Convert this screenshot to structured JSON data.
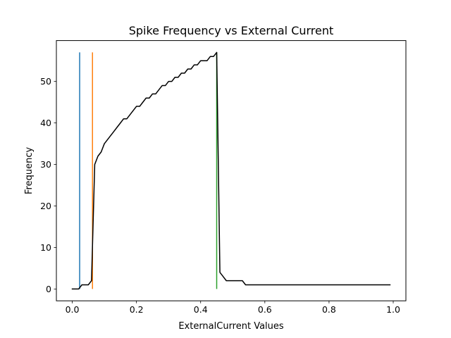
{
  "chart_data": {
    "type": "line",
    "title": "Spike Frequency vs External Current",
    "xlabel": "ExternalCurrent Values",
    "ylabel": "Frequency",
    "xlim": [
      -0.0495,
      1.0395
    ],
    "ylim": [
      -2.85,
      59.85
    ],
    "grid": false,
    "legend": "none",
    "x_ticks": [
      {
        "value": 0.0,
        "label": "0.0"
      },
      {
        "value": 0.2,
        "label": "0.2"
      },
      {
        "value": 0.4,
        "label": "0.4"
      },
      {
        "value": 0.6,
        "label": "0.6"
      },
      {
        "value": 0.8,
        "label": "0.8"
      },
      {
        "value": 1.0,
        "label": "1.0"
      }
    ],
    "y_ticks": [
      {
        "value": 0,
        "label": "0"
      },
      {
        "value": 10,
        "label": "10"
      },
      {
        "value": 20,
        "label": "20"
      },
      {
        "value": 30,
        "label": "30"
      },
      {
        "value": 40,
        "label": "40"
      },
      {
        "value": 50,
        "label": "50"
      }
    ],
    "series": [
      {
        "color": "#000000",
        "x": [
          0.0,
          0.01,
          0.02,
          0.03,
          0.04,
          0.05,
          0.06,
          0.07,
          0.08,
          0.09,
          0.1,
          0.11,
          0.12,
          0.13,
          0.14,
          0.15,
          0.16,
          0.17,
          0.18,
          0.19,
          0.2,
          0.21,
          0.22,
          0.23,
          0.24,
          0.25,
          0.26,
          0.27,
          0.28,
          0.29,
          0.3,
          0.31,
          0.32,
          0.33,
          0.34,
          0.35,
          0.36,
          0.37,
          0.38,
          0.39,
          0.4,
          0.41,
          0.42,
          0.43,
          0.44,
          0.45,
          0.46,
          0.47,
          0.48,
          0.49,
          0.5,
          0.51,
          0.52,
          0.53,
          0.54,
          0.55,
          0.56,
          0.57,
          0.58,
          0.59,
          0.6,
          0.61,
          0.62,
          0.63,
          0.64,
          0.65,
          0.66,
          0.67,
          0.68,
          0.69,
          0.7,
          0.71,
          0.72,
          0.73,
          0.74,
          0.75,
          0.76,
          0.77,
          0.78,
          0.79,
          0.8,
          0.81,
          0.82,
          0.83,
          0.84,
          0.85,
          0.86,
          0.87,
          0.88,
          0.89,
          0.9,
          0.91,
          0.92,
          0.93,
          0.94,
          0.95,
          0.96,
          0.97,
          0.98,
          0.99
        ],
        "y": [
          0,
          0,
          0,
          1,
          1,
          1,
          2,
          30,
          32,
          33,
          35,
          36,
          37,
          38,
          39,
          40,
          41,
          41,
          42,
          43,
          44,
          44,
          45,
          46,
          46,
          47,
          47,
          48,
          49,
          49,
          50,
          50,
          51,
          51,
          52,
          52,
          53,
          53,
          54,
          54,
          55,
          55,
          55,
          56,
          56,
          57,
          4,
          3,
          2,
          2,
          2,
          2,
          2,
          2,
          1,
          1,
          1,
          1,
          1,
          1,
          1,
          1,
          1,
          1,
          1,
          1,
          1,
          1,
          1,
          1,
          1,
          1,
          1,
          1,
          1,
          1,
          1,
          1,
          1,
          1,
          1,
          1,
          1,
          1,
          1,
          1,
          1,
          1,
          1,
          1,
          1,
          1,
          1,
          1,
          1,
          1,
          1,
          1,
          1,
          1
        ]
      }
    ],
    "vlines": [
      {
        "x": 0.023,
        "ymin": 0,
        "ymax": 57,
        "color": "#1f77b4"
      },
      {
        "x": 0.063,
        "ymin": 0,
        "ymax": 57,
        "color": "#ff7f0e"
      },
      {
        "x": 0.45,
        "ymin": 0,
        "ymax": 57,
        "color": "#2ca02c"
      }
    ]
  }
}
